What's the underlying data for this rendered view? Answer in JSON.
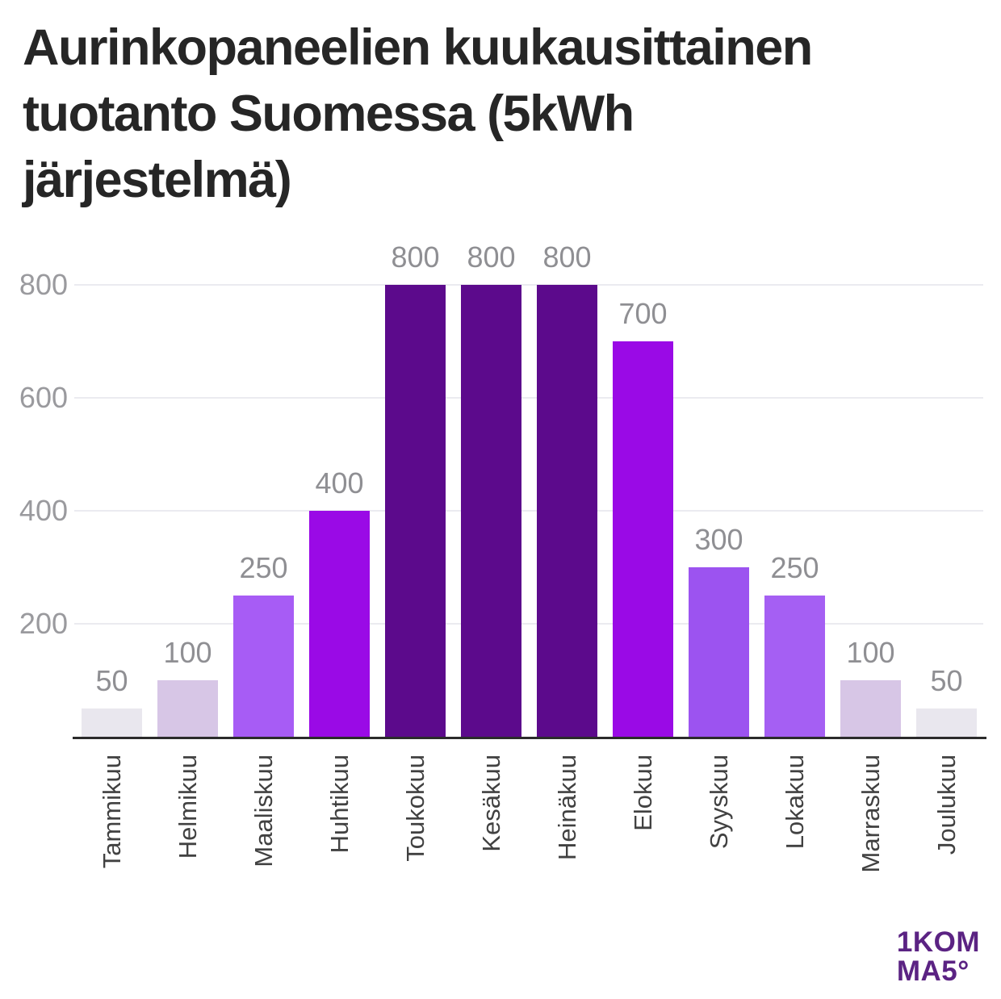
{
  "title": {
    "full": "Aurinkopaneelien kuukausittainen tuotanto Suomessa (5kWh järjestelmä)",
    "lines": [
      "Aurinkopaneelien kuukausittainen",
      "tuotanto Suomessa (5kWh",
      "järjestelmä)"
    ]
  },
  "chart_data": {
    "type": "bar",
    "title": "Aurinkopaneelien kuukausittainen tuotanto Suomessa (5kWh järjestelmä)",
    "categories": [
      "Tammikuu",
      "Helmikuu",
      "Maaliskuu",
      "Huhtikuu",
      "Toukokuu",
      "Kesäkuu",
      "Heinäkuu",
      "Elokuu",
      "Syyskuu",
      "Lokakuu",
      "Marraskuu",
      "Joulukuu"
    ],
    "values": [
      50,
      100,
      250,
      400,
      800,
      800,
      800,
      700,
      300,
      250,
      100,
      50
    ],
    "bar_colors": [
      "#e9e7ee",
      "#d7c6e6",
      "#a75cf5",
      "#9a0ae6",
      "#5c0a8c",
      "#5c0a8c",
      "#5c0a8c",
      "#9a0ae6",
      "#9c53f0",
      "#a55ff3",
      "#d7c6e6",
      "#e9e7ee"
    ],
    "value_labels": [
      "50",
      "100",
      "250",
      "400",
      "800",
      "800",
      "800",
      "700",
      "300",
      "250",
      "100",
      "50"
    ],
    "xlabel": "",
    "ylabel": "",
    "yticks": [
      200,
      400,
      600,
      800
    ],
    "ytick_labels": [
      "200",
      "400",
      "600",
      "800"
    ],
    "ylim": [
      0,
      860
    ],
    "grid": true,
    "legend": false
  },
  "logo": {
    "part1": "1",
    "part2": "KOM",
    "part3": "MA",
    "part4": "5°",
    "line1": "1KOM",
    "line2": "MA5°"
  },
  "theme": {
    "title": "#262626",
    "grid": "#ebebf0",
    "axis": "#2b2b2b",
    "tick": "#9a9a9e",
    "vlabel": "#8f8f93",
    "mlabel": "#414141",
    "logo": "#5b2383",
    "background": "#ffffff"
  }
}
